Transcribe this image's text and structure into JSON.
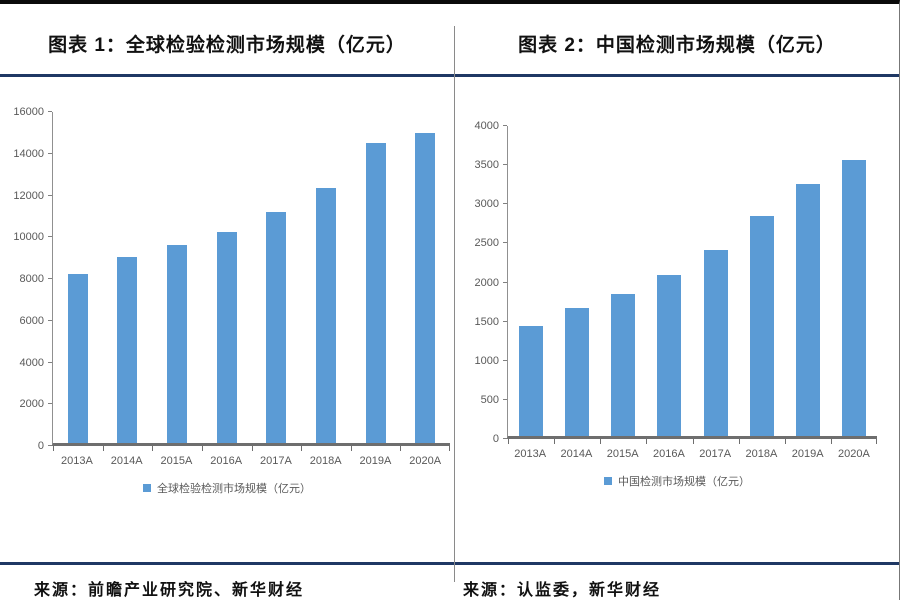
{
  "colors": {
    "bar_blue": "#5B9BD5",
    "rule_navy": "#1F3864",
    "axis_gray": "#808080",
    "tick_label_gray": "#595959"
  },
  "chart_data": [
    {
      "type": "bar",
      "title": "图表 1：全球检验检测市场规模（亿元）",
      "categories": [
        "2013A",
        "2014A",
        "2015A",
        "2016A",
        "2017A",
        "2018A",
        "2019A",
        "2020A"
      ],
      "series": [
        {
          "name": "全球检验检测市场规模（亿元）",
          "values": [
            8100,
            8900,
            9500,
            10100,
            11050,
            12200,
            14350,
            14870
          ]
        }
      ],
      "ylim": [
        0,
        16000
      ],
      "yticks": [
        0,
        2000,
        4000,
        6000,
        8000,
        10000,
        12000,
        14000,
        16000
      ],
      "grid": false,
      "legend_position": "bottom",
      "bar_color": "#5B9BD5",
      "source": "来源：前瞻产业研究院、新华财经"
    },
    {
      "type": "bar",
      "title": "图表 2：中国检测市场规模（亿元）",
      "categories": [
        "2013A",
        "2014A",
        "2015A",
        "2016A",
        "2017A",
        "2018A",
        "2019A",
        "2020A"
      ],
      "series": [
        {
          "name": "中国检测市场规模（亿元）",
          "values": [
            1400,
            1630,
            1810,
            2060,
            2380,
            2810,
            3220,
            3530
          ]
        }
      ],
      "ylim": [
        0,
        4000
      ],
      "yticks": [
        0,
        500,
        1000,
        1500,
        2000,
        2500,
        3000,
        3500,
        4000
      ],
      "grid": false,
      "legend_position": "bottom",
      "bar_color": "#5B9BD5",
      "source": "来源：认监委，新华财经"
    }
  ]
}
